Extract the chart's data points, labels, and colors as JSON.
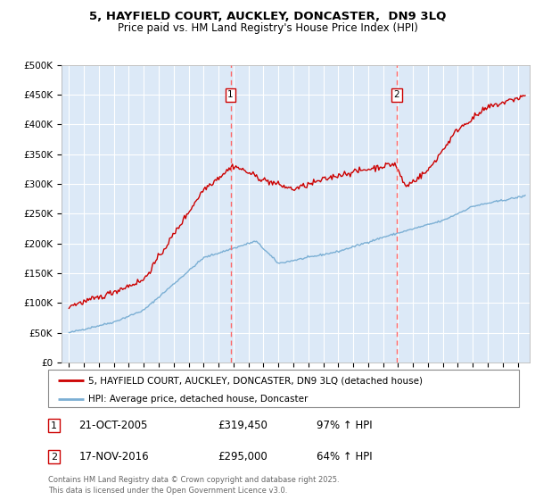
{
  "title_line1": "5, HAYFIELD COURT, AUCKLEY, DONCASTER,  DN9 3LQ",
  "title_line2": "Price paid vs. HM Land Registry's House Price Index (HPI)",
  "bg_color": "#dce9f7",
  "grid_color": "#ffffff",
  "red_color": "#cc0000",
  "blue_color": "#7bafd4",
  "vline_color": "#ff6666",
  "marker1_x": 2005.8,
  "marker2_x": 2016.9,
  "legend_label_red": "5, HAYFIELD COURT, AUCKLEY, DONCASTER, DN9 3LQ (detached house)",
  "legend_label_blue": "HPI: Average price, detached house, Doncaster",
  "footer": "Contains HM Land Registry data © Crown copyright and database right 2025.\nThis data is licensed under the Open Government Licence v3.0.",
  "ylim": [
    0,
    500000
  ],
  "yticks": [
    0,
    50000,
    100000,
    150000,
    200000,
    250000,
    300000,
    350000,
    400000,
    450000,
    500000
  ],
  "ytick_labels": [
    "£0",
    "£50K",
    "£100K",
    "£150K",
    "£200K",
    "£250K",
    "£300K",
    "£350K",
    "£400K",
    "£450K",
    "£500K"
  ],
  "xlim_start": 1994.5,
  "xlim_end": 2025.8
}
